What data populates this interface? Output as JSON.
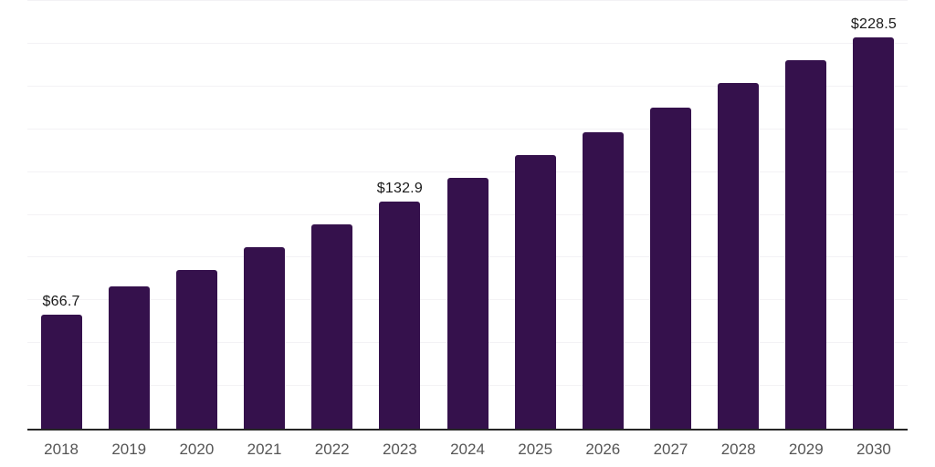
{
  "chart_data": {
    "type": "bar",
    "title": "",
    "xlabel": "",
    "ylabel": "",
    "categories": [
      "2018",
      "2019",
      "2020",
      "2021",
      "2022",
      "2023",
      "2024",
      "2025",
      "2026",
      "2027",
      "2028",
      "2029",
      "2030"
    ],
    "values": [
      66.7,
      83.1,
      92.7,
      106.2,
      119.5,
      132.9,
      146.5,
      159.7,
      173.5,
      187.7,
      201.9,
      215.2,
      228.5
    ],
    "data_labels": [
      "$66.7",
      null,
      null,
      null,
      null,
      "$132.9",
      null,
      null,
      null,
      null,
      null,
      null,
      "$228.5"
    ],
    "ylim": [
      0,
      250
    ],
    "gridline_step": 25,
    "grid": true,
    "y_tick_labels_shown": false,
    "legend_position": "none",
    "currency_prefix": "$"
  },
  "colors": {
    "background": "#ffffff",
    "bar": "#35114c",
    "axis_line": "#262626",
    "gridline": "#f3f2f5",
    "x_tick_label": "#555555",
    "data_label": "#1a1a1a"
  }
}
